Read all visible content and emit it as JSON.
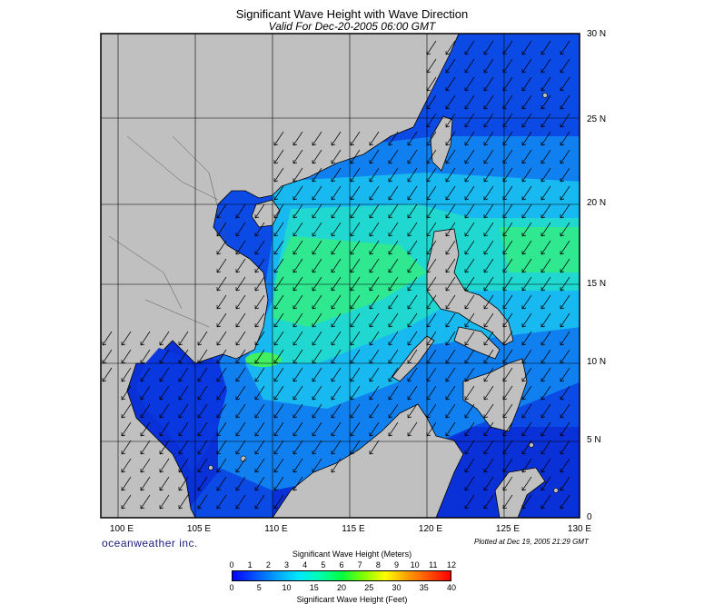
{
  "header": {
    "title": "Significant Wave Height with Wave Direction",
    "subtitle": "Valid For Dec-20-2005 06:00 GMT"
  },
  "map": {
    "lat_labels": [
      "30 N",
      "25 N",
      "20 N",
      "15 N",
      "10 N",
      "5 N",
      "0"
    ],
    "lon_labels": [
      "100 E",
      "105 E",
      "110 E",
      "115 E",
      "120 E",
      "125 E",
      "130 E"
    ],
    "lat_range": [
      0,
      30
    ],
    "lon_range": [
      99,
      130
    ],
    "colors": {
      "land": "#c0c0c0",
      "deep_blue": "#0a2fe0",
      "mid_blue": "#0f78f0",
      "cyan": "#12c8f0",
      "teal": "#2ee0b0",
      "green": "#30f060"
    }
  },
  "footer": {
    "brand": "oceanweather inc.",
    "plotted": "Plotted at Dec 19, 2005 21:29 GMT"
  },
  "colorbar": {
    "title_top": "Significant Wave Height (Meters)",
    "title_bottom": "Significant Wave Height (Feet)",
    "meters": [
      "0",
      "1",
      "2",
      "3",
      "4",
      "5",
      "6",
      "7",
      "8",
      "9",
      "10",
      "11",
      "12"
    ],
    "feet": [
      "0",
      "5",
      "10",
      "15",
      "20",
      "25",
      "30",
      "35",
      "40"
    ],
    "stops": [
      "#0000ff",
      "#0050ff",
      "#00a0ff",
      "#00e6ff",
      "#00ffb0",
      "#00ff40",
      "#80ff00",
      "#ffff00",
      "#ffa000",
      "#ff5000",
      "#ff0000"
    ]
  }
}
